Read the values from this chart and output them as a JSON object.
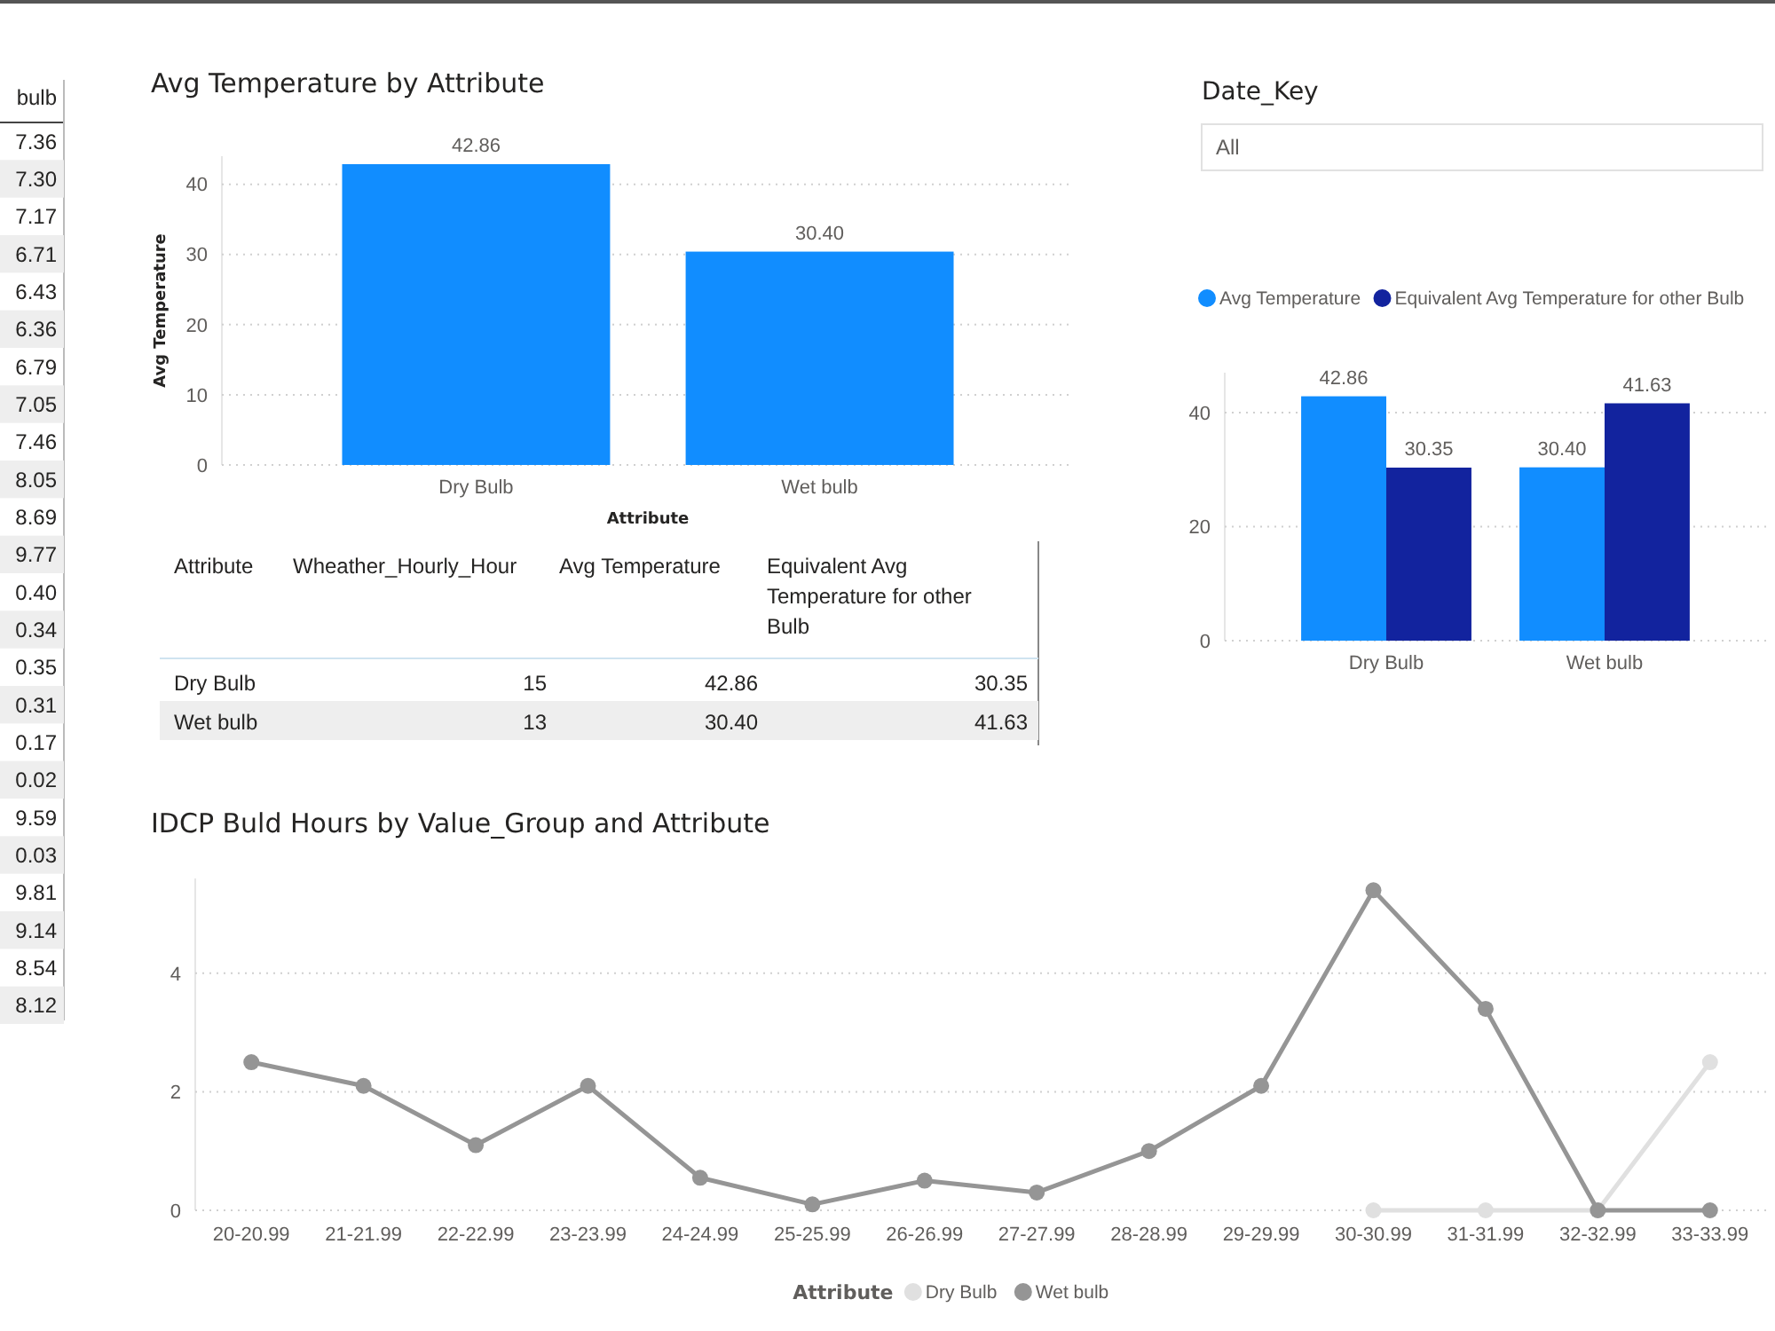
{
  "chart_data": [
    {
      "type": "other",
      "categories": [
        "bulb"
      ],
      "annotations": [
        "7.36",
        "7.30",
        "7.17",
        "6.71",
        "6.43",
        "6.36",
        "6.79",
        "7.05",
        "7.46",
        "8.05",
        "8.69",
        "9.77",
        "0.40",
        "0.34",
        "0.35",
        "0.31",
        "0.17",
        "0.02",
        "9.59",
        "0.03",
        "9.81",
        "9.14",
        "8.54",
        "8.12"
      ]
    },
    {
      "type": "bar",
      "title": "Avg Temperature by Attribute",
      "xlabel": "Attribute",
      "ylabel": "Avg Temperature",
      "categories": [
        "Dry Bulb",
        "Wet bulb"
      ],
      "series": [
        {
          "color": "#118dff",
          "values": [
            42.86,
            30.4
          ],
          "value_labels": [
            "42.86",
            "30.40"
          ]
        }
      ],
      "ylim": [
        0,
        44
      ],
      "yticks": [
        0,
        10,
        20,
        30,
        40
      ],
      "grid": "y"
    },
    {
      "type": "other",
      "categories": [
        "Attribute",
        "Wheather_Hourly_Hour",
        "Avg Temperature",
        "Equivalent Avg Temperature for other Bulb"
      ],
      "annotations": [
        "Dry Bulb",
        "15",
        "42.86",
        "30.35",
        "Wet bulb",
        "13",
        "30.40",
        "41.63"
      ]
    },
    {
      "type": "other",
      "title": "Date_Key",
      "annotations": [
        "All"
      ]
    },
    {
      "type": "bar",
      "categories": [
        "Dry Bulb",
        "Wet bulb"
      ],
      "series": [
        {
          "name": "Avg Temperature",
          "color": "#118dff",
          "values": [
            42.86,
            30.4
          ],
          "value_labels": [
            "42.86",
            "30.40"
          ]
        },
        {
          "name": "Equivalent Avg Temperature for other Bulb",
          "color": "#12239e",
          "values": [
            30.35,
            41.63
          ],
          "value_labels": [
            "30.35",
            "41.63"
          ]
        }
      ],
      "ylim": [
        0,
        47
      ],
      "yticks": [
        0,
        20,
        40
      ],
      "grid": "y",
      "legend": "top left"
    },
    {
      "type": "line",
      "title": "IDCP Buld Hours by Value_Group and Attribute",
      "categories": [
        "20-20.99",
        "21-21.99",
        "22-22.99",
        "23-23.99",
        "24-24.99",
        "25-25.99",
        "26-26.99",
        "27-27.99",
        "28-28.99",
        "29-29.99",
        "30-30.99",
        "31-31.99",
        "32-32.99",
        "33-33.99"
      ],
      "series": [
        {
          "name": "Dry Bulb",
          "color": "#e0e0e0",
          "values": [
            null,
            null,
            null,
            null,
            null,
            null,
            null,
            null,
            null,
            null,
            0,
            0,
            0,
            2.5
          ]
        },
        {
          "name": "Wet bulb",
          "color": "#959595",
          "values": [
            2.5,
            2.1,
            1.1,
            2.1,
            0.55,
            0.1,
            0.5,
            0.3,
            1.0,
            2.1,
            5.4,
            3.4,
            0,
            0
          ]
        }
      ],
      "ylim": [
        0,
        5.6
      ],
      "yticks": [
        0,
        2,
        4
      ],
      "grid": "y",
      "marker": "circle",
      "legend": "bottom",
      "legend_title": "Attribute"
    }
  ]
}
